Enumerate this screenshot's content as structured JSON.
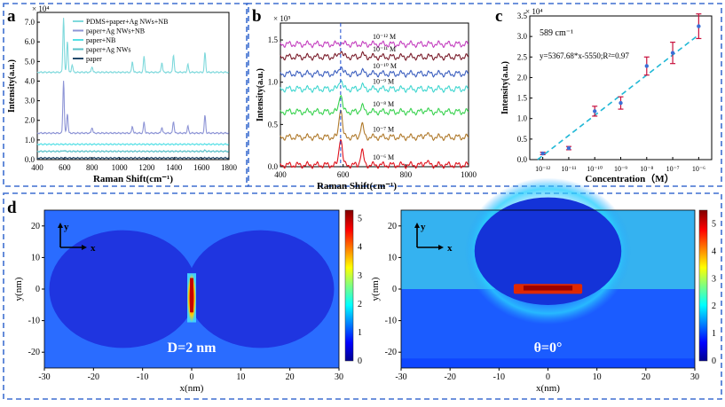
{
  "colors": {
    "panel_border": "#3f6fd0",
    "accent_line": "#1a73e8",
    "fit_line": "#21b8d6",
    "point": "#3b6fd6",
    "errorbar": "#c8103d"
  },
  "panels": {
    "a": {
      "label": "a"
    },
    "b": {
      "label": "b"
    },
    "c": {
      "label": "c"
    },
    "d": {
      "label": "d"
    }
  },
  "chart_data": [
    {
      "type": "line",
      "title": "",
      "xlabel": "Raman Shift(cm⁻¹)",
      "ylabel": "Intensity(a.u.)",
      "xlim": [
        400,
        1800
      ],
      "ylim": [
        0,
        7.5
      ],
      "y_exponent": "× 10⁴",
      "x_ticks": [
        "400",
        "600",
        "800",
        "1000",
        "1200",
        "1400",
        "1600",
        "1800"
      ],
      "y_ticks": [
        "0.0",
        "1.0",
        "2.0",
        "3.0",
        "4.0",
        "5.0",
        "6.0",
        "7.0"
      ],
      "series": [
        {
          "name": "PDMS+paper+Ag NWs+NB",
          "color": "#7fd9dc",
          "baseline": 4.45,
          "peaks": [
            [
              592,
              2.8
            ],
            [
              620,
              1.6
            ],
            [
              655,
              0.4
            ],
            [
              800,
              0.3
            ],
            [
              1095,
              0.55
            ],
            [
              1180,
              0.8
            ],
            [
              1310,
              0.5
            ],
            [
              1395,
              0.9
            ],
            [
              1500,
              0.4
            ],
            [
              1625,
              1.0
            ]
          ]
        },
        {
          "name": "paper+Ag NWs+NB",
          "color": "#8e95d6",
          "baseline": 1.35,
          "peaks": [
            [
              592,
              2.7
            ],
            [
              620,
              1.0
            ],
            [
              800,
              0.3
            ],
            [
              1095,
              0.35
            ],
            [
              1180,
              0.55
            ],
            [
              1310,
              0.3
            ],
            [
              1395,
              0.6
            ],
            [
              1500,
              0.35
            ],
            [
              1625,
              0.9
            ]
          ]
        },
        {
          "name": "paper+NB",
          "color": "#55e0e6",
          "baseline": 0.78,
          "peaks": []
        },
        {
          "name": "paper+Ag NWs",
          "color": "#5ac0c8",
          "baseline": 0.42,
          "peaks": [
            [
              592,
              0.05
            ],
            [
              1625,
              0.05
            ]
          ]
        },
        {
          "name": "paper",
          "color": "#244a6b",
          "baseline": 0.08,
          "peaks": []
        }
      ]
    },
    {
      "type": "line",
      "title": "",
      "xlabel": "Raman Shift(cm⁻¹)",
      "ylabel": "Intensity(a.u.)",
      "xlim": [
        400,
        1000
      ],
      "ylim": [
        0,
        1.7
      ],
      "y_exponent": "× 10⁵",
      "marker_line_x": 592,
      "x_ticks": [
        "400",
        "600",
        "800",
        "1000"
      ],
      "y_ticks": [
        "0.0",
        "0.5",
        "1.0",
        "1.5"
      ],
      "series": [
        {
          "name": "10⁻¹² M",
          "color": "#c43fbf",
          "baseline": 1.45,
          "peaks": [
            [
              592,
              0.02
            ]
          ]
        },
        {
          "name": "10⁻¹¹ M",
          "color": "#7a1d2b",
          "baseline": 1.3,
          "peaks": [
            [
              592,
              0.08
            ],
            [
              660,
              0.03
            ]
          ]
        },
        {
          "name": "10⁻¹⁰ M",
          "color": "#3c5fbf",
          "baseline": 1.1,
          "peaks": [
            [
              592,
              0.1
            ],
            [
              660,
              0.03
            ]
          ]
        },
        {
          "name": "10⁻⁹ M",
          "color": "#40d6d0",
          "baseline": 0.92,
          "peaks": [
            [
              592,
              0.12
            ],
            [
              660,
              0.04
            ]
          ]
        },
        {
          "name": "10⁻⁸ M",
          "color": "#39d24f",
          "baseline": 0.65,
          "peaks": [
            [
              592,
              0.22
            ],
            [
              660,
              0.07
            ],
            [
              865,
              0.03
            ]
          ]
        },
        {
          "name": "10⁻⁷ M",
          "color": "#b07a2c",
          "baseline": 0.35,
          "peaks": [
            [
              592,
              0.35
            ],
            [
              660,
              0.15
            ],
            [
              865,
              0.05
            ]
          ]
        },
        {
          "name": "10⁻⁶ M",
          "color": "#e0141e",
          "baseline": 0.02,
          "peaks": [
            [
              592,
              0.33
            ],
            [
              660,
              0.17
            ],
            [
              865,
              0.05
            ]
          ]
        }
      ]
    },
    {
      "type": "scatter",
      "title": "589 cm⁻¹",
      "xlabel": "Concentration（M）",
      "ylabel": "Intensity(a.u.)",
      "xlim": [
        -12.5,
        -5.5
      ],
      "ylim": [
        0,
        3.5
      ],
      "y_exponent": "× 10⁴",
      "annotation": "y=5367.68*x-5550;R²=0.97",
      "fit": {
        "slope": 0.5368,
        "intercept_at_minus12": -0.18
      },
      "x_ticks": [
        "10⁻¹²",
        "10⁻¹¹",
        "10⁻¹⁰",
        "10⁻⁹",
        "10⁻⁸",
        "10⁻⁷",
        "10⁻⁶"
      ],
      "y_ticks": [
        "0.0",
        "0.5",
        "1.0",
        "1.5",
        "2.0",
        "2.5",
        "3.0",
        "3.5"
      ],
      "x": [
        -12,
        -11,
        -10,
        -9,
        -8,
        -7,
        -6
      ],
      "values": [
        0.15,
        0.28,
        1.18,
        1.38,
        2.28,
        2.6,
        3.25
      ],
      "errors": [
        0.03,
        0.04,
        0.12,
        0.15,
        0.22,
        0.26,
        0.3
      ]
    },
    {
      "type": "heatmap",
      "title": "",
      "xlabel": "x(nm)",
      "ylabel": "y(nm)",
      "xlim": [
        -30,
        30
      ],
      "ylim": [
        -25,
        25
      ],
      "caption": "D=2 nm",
      "axis_x": "x",
      "axis_y": "y",
      "x_ticks": [
        "-30",
        "-20",
        "-10",
        "0",
        "10",
        "20",
        "30"
      ],
      "y_ticks": [
        "20",
        "10",
        "0",
        "-10",
        "-20"
      ],
      "colorbar_ticks": [
        "5",
        "4",
        "3",
        "2",
        "1",
        "0"
      ],
      "colorbar_range": [
        0,
        5.3
      ]
    },
    {
      "type": "heatmap",
      "title": "",
      "xlabel": "x(nm)",
      "ylabel": "y(nm)",
      "xlim": [
        -30,
        30
      ],
      "ylim": [
        -25,
        25
      ],
      "caption": "θ=0°",
      "axis_x": "x",
      "axis_y": "y",
      "x_ticks": [
        "-30",
        "-20",
        "-10",
        "0",
        "10",
        "20",
        "30"
      ],
      "y_ticks": [
        "20",
        "10",
        "0",
        "-10",
        "-20"
      ],
      "colorbar_ticks": [
        "5",
        "4",
        "3",
        "2",
        "1",
        "0"
      ],
      "colorbar_range": [
        0,
        5.5
      ]
    }
  ]
}
